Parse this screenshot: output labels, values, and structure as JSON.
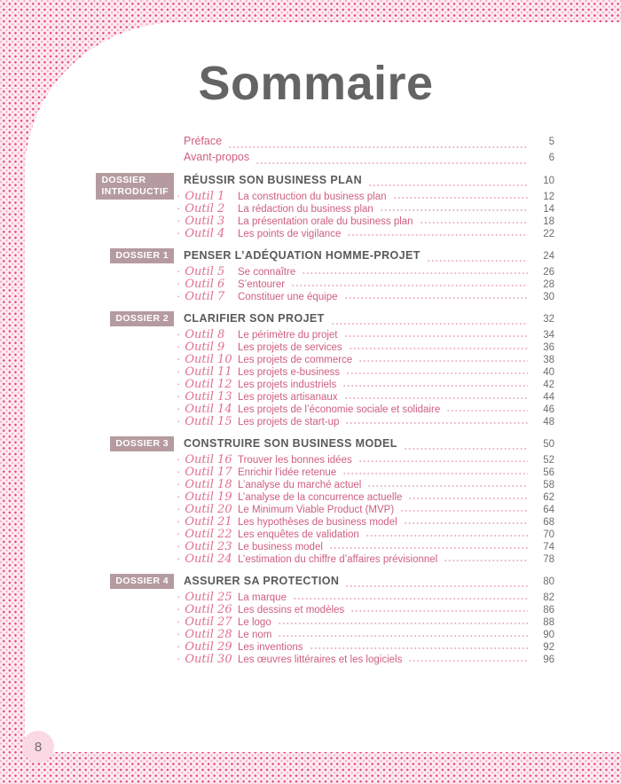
{
  "page": {
    "title": "Sommaire",
    "page_number": "8",
    "bullet": "·"
  },
  "colors": {
    "entry_pink": "#cf5e7e",
    "outil_script_pink": "#e0718e",
    "badge_mauve": "#b59b9f",
    "heading_gray": "#59595b",
    "title_gray": "#646467",
    "page_number_gray": "#6c6d70",
    "dot_pattern_pink": "#e8437b",
    "dot_pattern_bg": "#fdecf2",
    "leader_dot_pink": "#f0b7c8",
    "page_circle_pink": "#fbd9e4"
  },
  "front_matter": [
    {
      "label": "Préface",
      "page": "5"
    },
    {
      "label": "Avant-propos",
      "page": "6"
    }
  ],
  "sections": [
    {
      "badge_lines": [
        "DOSSIER",
        "INTRODUCTIF"
      ],
      "title": "RÉUSSIR SON BUSINESS PLAN",
      "page": "10",
      "items": [
        {
          "outil": "Outil 1",
          "label": "La construction du business plan",
          "page": "12"
        },
        {
          "outil": "Outil 2",
          "label": "La rédaction du business plan",
          "page": "14"
        },
        {
          "outil": "Outil 3",
          "label": "La présentation orale du business plan",
          "page": "18"
        },
        {
          "outil": "Outil 4",
          "label": "Les points de vigilance",
          "page": "22"
        }
      ]
    },
    {
      "badge_lines": [
        "DOSSIER 1"
      ],
      "title": "PENSER L’ADÉQUATION HOMME-PROJET",
      "page": "24",
      "items": [
        {
          "outil": "Outil 5",
          "label": "Se connaître",
          "page": "26"
        },
        {
          "outil": "Outil 6",
          "label": "S’entourer",
          "page": "28"
        },
        {
          "outil": "Outil 7",
          "label": "Constituer une équipe",
          "page": "30"
        }
      ]
    },
    {
      "badge_lines": [
        "DOSSIER 2"
      ],
      "title": "CLARIFIER SON PROJET",
      "page": "32",
      "items": [
        {
          "outil": "Outil 8",
          "label": "Le périmètre du projet",
          "page": "34"
        },
        {
          "outil": "Outil 9",
          "label": "Les projets de services",
          "page": "36"
        },
        {
          "outil": "Outil 10",
          "label": "Les projets de commerce",
          "page": "38"
        },
        {
          "outil": "Outil 11",
          "label": "Les projets e-business",
          "page": "40"
        },
        {
          "outil": "Outil 12",
          "label": "Les projets industriels",
          "page": "42"
        },
        {
          "outil": "Outil 13",
          "label": "Les projets artisanaux",
          "page": "44"
        },
        {
          "outil": "Outil 14",
          "label": "Les projets de l’économie sociale et solidaire",
          "page": "46"
        },
        {
          "outil": "Outil 15",
          "label": "Les projets de start-up",
          "page": "48"
        }
      ]
    },
    {
      "badge_lines": [
        "DOSSIER 3"
      ],
      "title": "CONSTRUIRE SON BUSINESS MODEL",
      "page": "50",
      "items": [
        {
          "outil": "Outil 16",
          "label": "Trouver les bonnes idées",
          "page": "52"
        },
        {
          "outil": "Outil 17",
          "label": "Enrichir l’idée retenue",
          "page": "56"
        },
        {
          "outil": "Outil 18",
          "label": "L’analyse du marché actuel",
          "page": "58"
        },
        {
          "outil": "Outil 19",
          "label": "L’analyse de la concurrence actuelle",
          "page": "62"
        },
        {
          "outil": "Outil 20",
          "label": "Le Minimum Viable Product (MVP)",
          "page": "64"
        },
        {
          "outil": "Outil 21",
          "label": "Les hypothèses de business model",
          "page": "68"
        },
        {
          "outil": "Outil 22",
          "label": "Les enquêtes de validation",
          "page": "70"
        },
        {
          "outil": "Outil 23",
          "label": "Le business model",
          "page": "74"
        },
        {
          "outil": "Outil 24",
          "label": "L’estimation du chiffre d’affaires prévisionnel",
          "page": "78"
        }
      ]
    },
    {
      "badge_lines": [
        "DOSSIER 4"
      ],
      "title": "ASSURER SA PROTECTION",
      "page": "80",
      "items": [
        {
          "outil": "Outil 25",
          "label": "La marque",
          "page": "82"
        },
        {
          "outil": "Outil 26",
          "label": "Les dessins et modèles",
          "page": "86"
        },
        {
          "outil": "Outil 27",
          "label": "Le logo",
          "page": "88"
        },
        {
          "outil": "Outil 28",
          "label": "Le nom",
          "page": "90"
        },
        {
          "outil": "Outil 29",
          "label": "Les inventions",
          "page": "92"
        },
        {
          "outil": "Outil 30",
          "label": "Les œuvres littéraires et les logiciels",
          "page": "96"
        }
      ]
    }
  ]
}
